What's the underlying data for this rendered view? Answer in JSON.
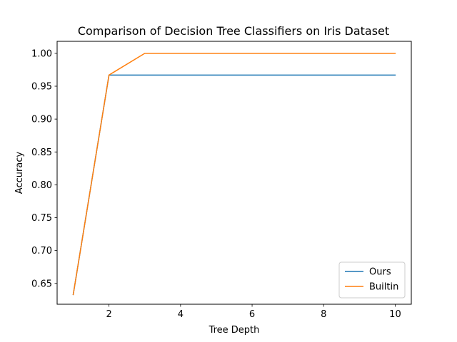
{
  "chart_data": {
    "type": "line",
    "title": "Comparison of Decision Tree Classifiers on Iris Dataset",
    "xlabel": "Tree Depth",
    "ylabel": "Accuracy",
    "x": [
      1,
      2,
      3,
      4,
      5,
      6,
      7,
      8,
      9,
      10
    ],
    "xticks": [
      2,
      4,
      6,
      8,
      10
    ],
    "yticks": [
      0.65,
      0.7,
      0.75,
      0.8,
      0.85,
      0.9,
      0.95,
      1.0
    ],
    "xlim": [
      0.55,
      10.45
    ],
    "ylim": [
      0.6183,
      1.0183
    ],
    "grid": false,
    "legend_position": "lower-right",
    "series": [
      {
        "name": "Ours",
        "color": "#1f77b4",
        "values": [
          0.633,
          0.967,
          0.967,
          0.967,
          0.967,
          0.967,
          0.967,
          0.967,
          0.967,
          0.967
        ]
      },
      {
        "name": "Builtin",
        "color": "#ff7f0e",
        "values": [
          0.633,
          0.967,
          1.0,
          1.0,
          1.0,
          1.0,
          1.0,
          1.0,
          1.0,
          1.0
        ]
      }
    ]
  }
}
